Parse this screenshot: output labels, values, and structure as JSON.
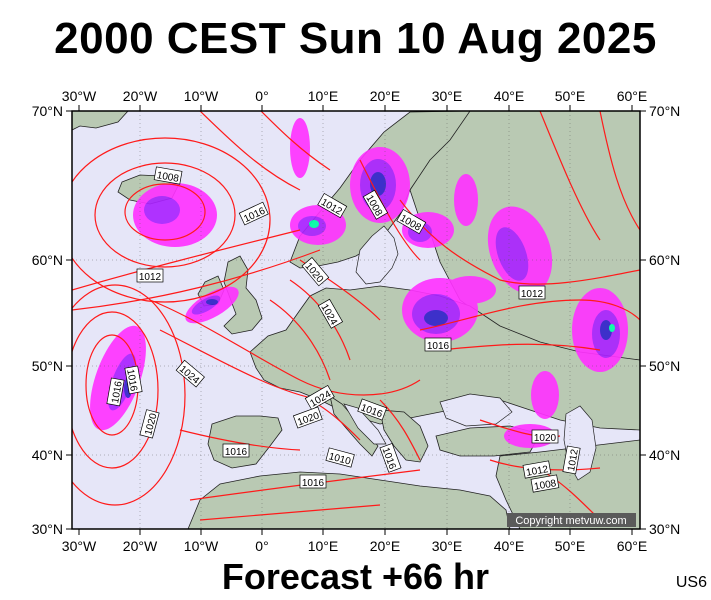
{
  "title": "2000 CEST Sun 10 Aug 2025",
  "footer": "Forecast +66 hr",
  "model_code": "US6",
  "copyright": "Copyright metvuw.com",
  "colors": {
    "ocean": "#e6e6f8",
    "land": "#b9c9b3",
    "isobar": "#ff1a1a",
    "rain_light": "#ff33ff",
    "rain_medium": "#aa22ff",
    "rain_heavy": "#3322cc",
    "rain_extreme": "#00ffaa"
  },
  "axes": {
    "lon_ticks": [
      "30°W",
      "20°W",
      "10°W",
      "0°",
      "10°E",
      "20°E",
      "30°E",
      "40°E",
      "50°E",
      "60°E"
    ],
    "lat_ticks": [
      "70°N",
      "60°N",
      "50°N",
      "40°N",
      "30°N"
    ]
  },
  "isobar_labels": [
    "1008",
    "1016",
    "1012",
    "1008",
    "1008",
    "1020",
    "1024",
    "1012",
    "1016",
    "1012",
    "1016",
    "1024",
    "1020",
    "1024",
    "1016",
    "1020",
    "1016",
    "1016",
    "1010",
    "1016",
    "1016",
    "1020",
    "1012",
    "1008",
    "1012"
  ]
}
